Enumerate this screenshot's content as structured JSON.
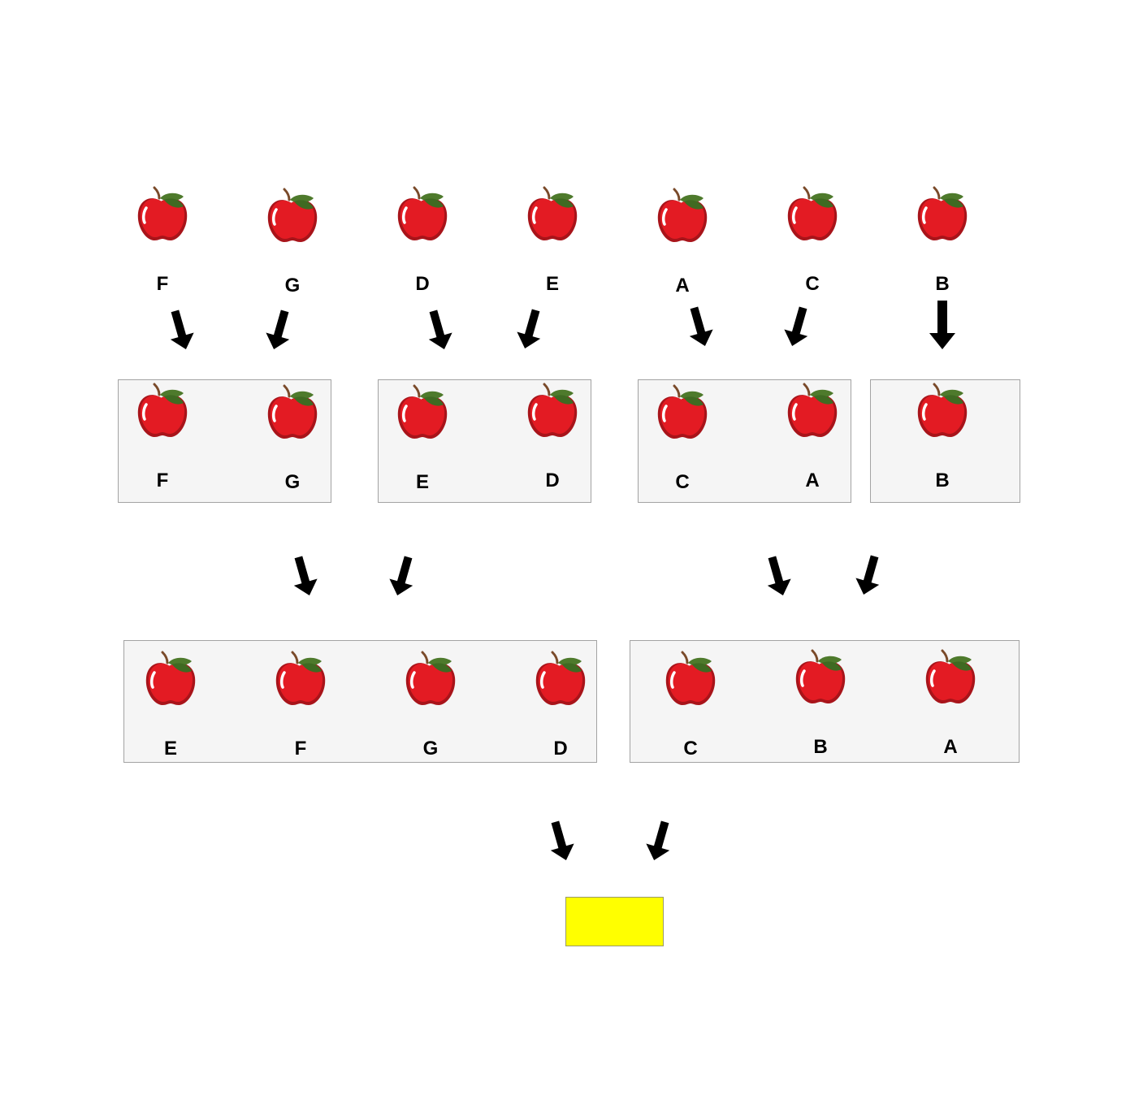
{
  "colors": {
    "apple_red": "#e31b23",
    "apple_shadow": "#a8141a",
    "leaf": "#4e7a2c",
    "stem": "#7a4a2a",
    "box_fill": "#f5f5f5",
    "answer_fill": "#ffff00",
    "arrow": "#000000"
  },
  "rows": {
    "row1": {
      "labels": [
        "F",
        "G",
        "D",
        "E",
        "A",
        "C",
        "B"
      ]
    },
    "row2": {
      "groups": [
        {
          "labels": [
            "F",
            "G"
          ]
        },
        {
          "labels": [
            "E",
            "D"
          ]
        },
        {
          "labels": [
            "C",
            "A"
          ]
        },
        {
          "labels": [
            "B"
          ]
        }
      ]
    },
    "row3": {
      "groups": [
        {
          "labels": [
            "E",
            "F",
            "G",
            "D"
          ]
        },
        {
          "labels": [
            "C",
            "B",
            "A"
          ]
        }
      ]
    }
  },
  "answer_box": {
    "text": ""
  }
}
